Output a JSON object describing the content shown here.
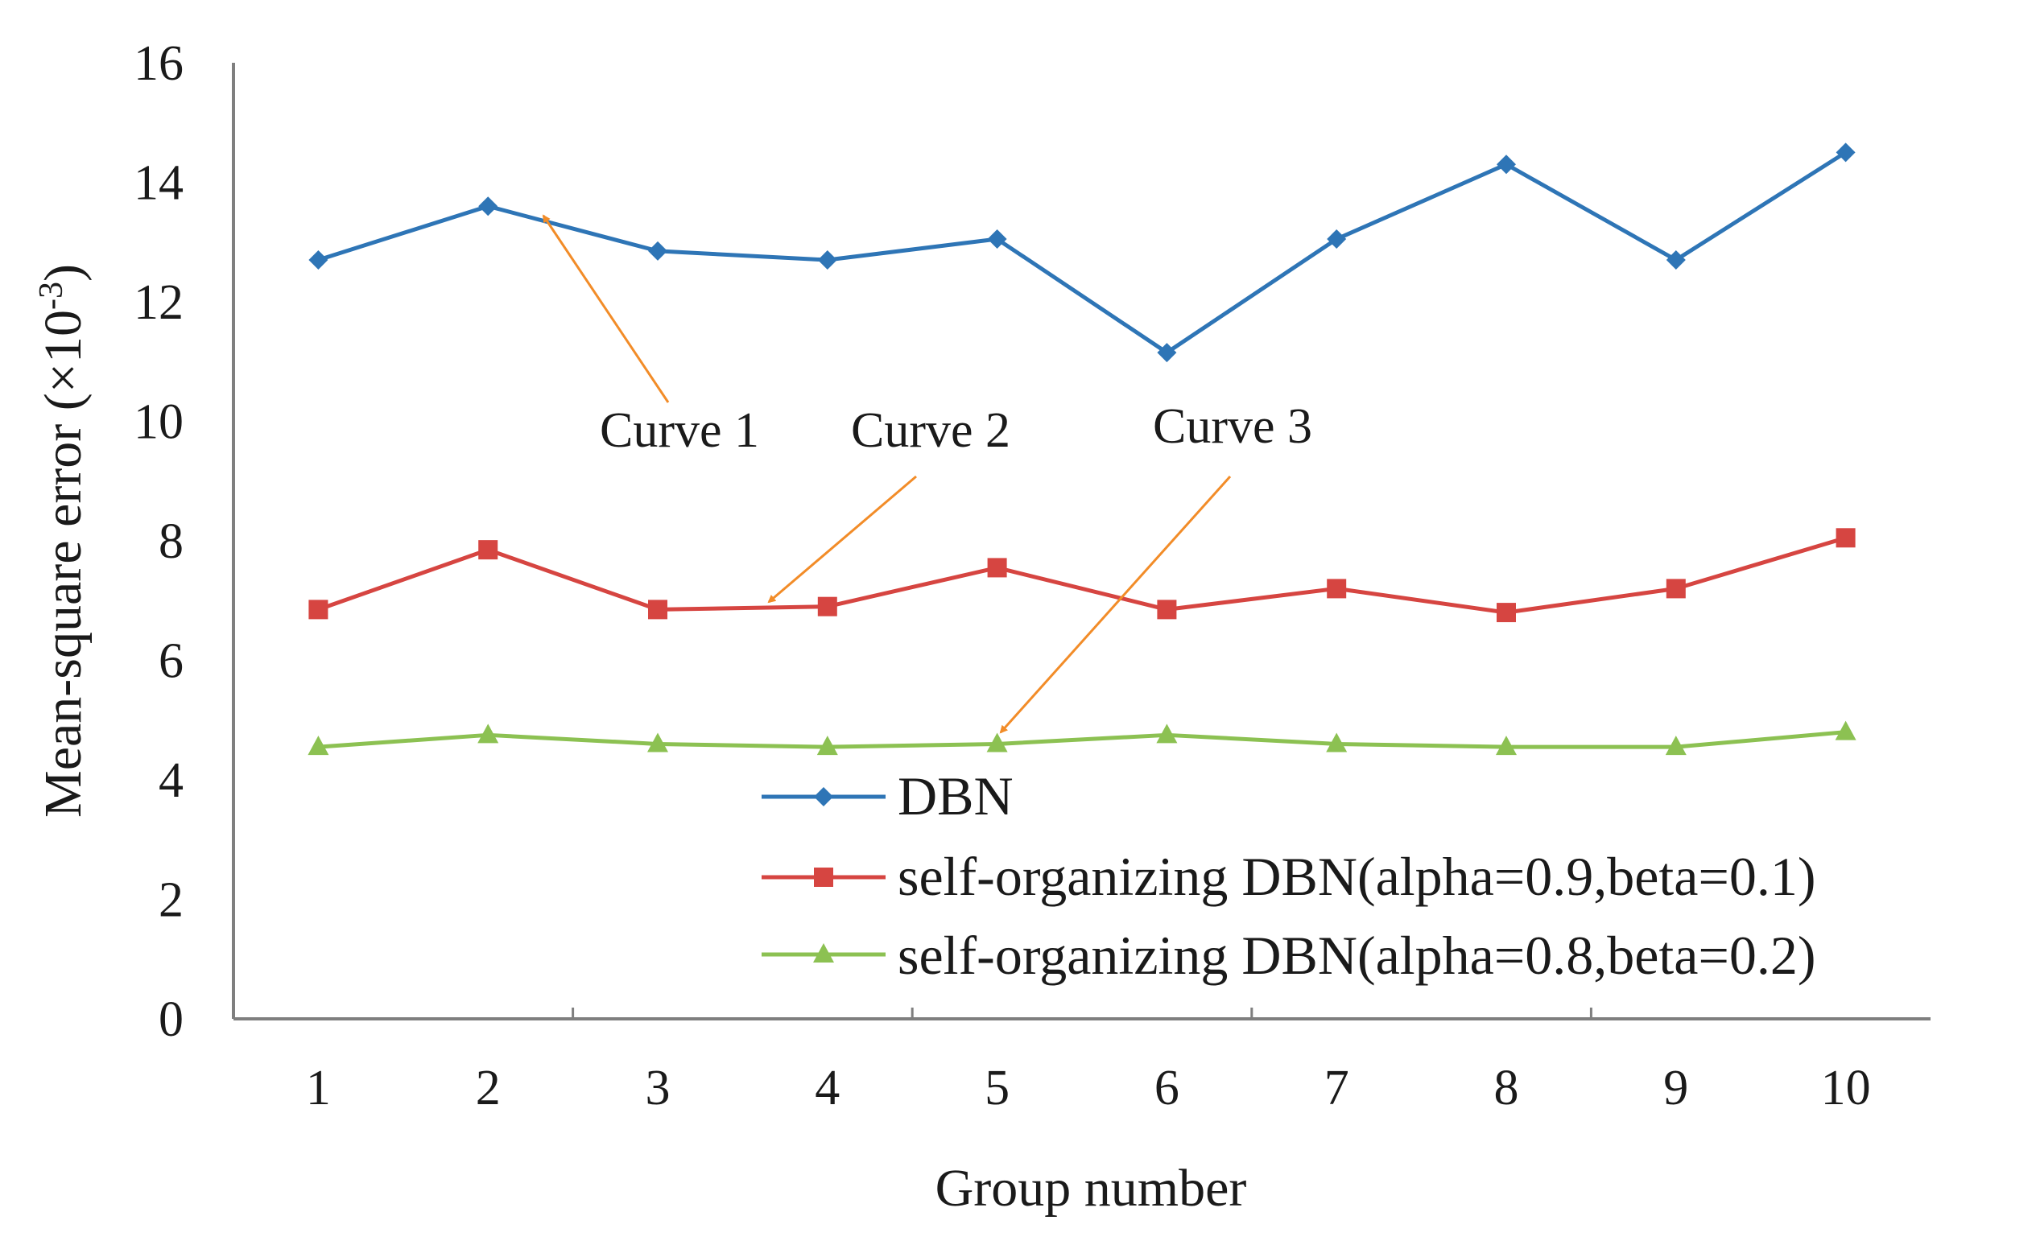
{
  "chart_data": {
    "type": "line",
    "title": "",
    "xlabel": "Group number",
    "ylabel": "Mean-square error (×10⁻³)",
    "ylabel_parts": {
      "main": "Mean-square error (",
      "times": "×",
      "base": "10",
      "exp": "-3",
      "close": ")"
    },
    "categories": [
      "1",
      "2",
      "3",
      "4",
      "5",
      "6",
      "7",
      "8",
      "9",
      "10"
    ],
    "ylim": [
      0,
      16
    ],
    "yticks": [
      "0",
      "2",
      "4",
      "6",
      "8",
      "10",
      "12",
      "14",
      "16"
    ],
    "grid": false,
    "legend_position": "bottom-right",
    "series": [
      {
        "name": "DBN",
        "color": "#2E75B6",
        "marker": "diamond",
        "values": [
          12.7,
          13.6,
          12.85,
          12.7,
          13.05,
          11.15,
          13.05,
          14.3,
          12.7,
          14.5
        ]
      },
      {
        "name": "self-organizing DBN(alpha=0.9,beta=0.1)",
        "color": "#D64541",
        "marker": "square",
        "values": [
          6.85,
          7.85,
          6.85,
          6.9,
          7.55,
          6.85,
          7.2,
          6.8,
          7.2,
          8.05
        ]
      },
      {
        "name": "self-organizing DBN(alpha=0.8,beta=0.2)",
        "color": "#8CC152",
        "marker": "triangle",
        "values": [
          4.55,
          4.75,
          4.6,
          4.55,
          4.6,
          4.75,
          4.6,
          4.55,
          4.55,
          4.8
        ]
      }
    ],
    "annotations": [
      {
        "text": "Curve 1",
        "series": "DBN",
        "arrow_color": "#F28C28"
      },
      {
        "text": "Curve 2",
        "series": "self-organizing DBN(alpha=0.9,beta=0.1)",
        "arrow_color": "#F28C28"
      },
      {
        "text": "Curve 3",
        "series": "self-organizing DBN(alpha=0.8,beta=0.2)",
        "arrow_color": "#F28C28"
      }
    ]
  }
}
